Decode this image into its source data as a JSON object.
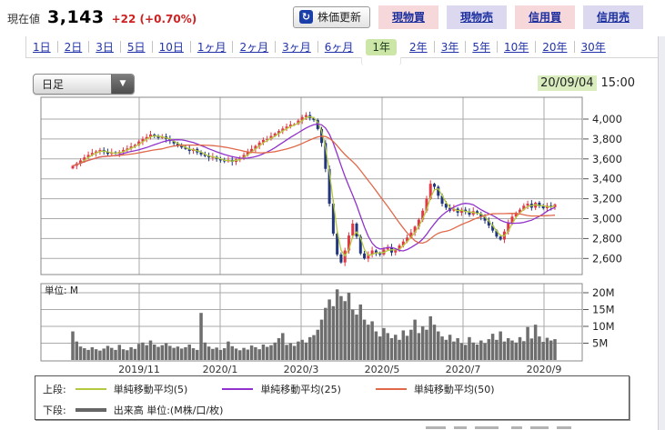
{
  "header": {
    "price_label": "現在値",
    "price": "3,143",
    "change": "+22 (+0.70%)",
    "refresh_button": "株価更新",
    "trade_buttons": [
      {
        "label": "現物買",
        "style": "pink"
      },
      {
        "label": "現物売",
        "style": "lavender"
      },
      {
        "label": "信用買",
        "style": "pink"
      },
      {
        "label": "信用売",
        "style": "lavender"
      }
    ]
  },
  "period_tabs": {
    "items": [
      "1日",
      "2日",
      "3日",
      "5日",
      "10日",
      "1ヶ月",
      "2ヶ月",
      "3ヶ月",
      "6ヶ月",
      "1年",
      "2年",
      "3年",
      "5年",
      "10年",
      "20年",
      "30年"
    ],
    "selected": "1年"
  },
  "toolbar": {
    "chart_type_value": "日足",
    "timestamp_date": "20/09/04",
    "timestamp_time": "15:00"
  },
  "chart_data": {
    "type": "candlestick",
    "x_axis_labels": [
      "2019/11",
      "2020/1",
      "2020/3",
      "2020/5",
      "2020/7",
      "2020/9"
    ],
    "price_axis_ticks": [
      4000,
      3800,
      3600,
      3400,
      3200,
      3000,
      2800,
      2600
    ],
    "volume_axis_ticks": [
      {
        "label": "20M",
        "value": 20
      },
      {
        "label": "15M",
        "value": 15
      },
      {
        "label": "10M",
        "value": 10
      },
      {
        "label": "5M",
        "value": 5
      }
    ],
    "volume_unit_label": "単位: M",
    "last_price": 3143,
    "closes": [
      3530,
      3555,
      3585,
      3615,
      3640,
      3660,
      3675,
      3690,
      3670,
      3650,
      3665,
      3655,
      3670,
      3690,
      3705,
      3725,
      3740,
      3775,
      3800,
      3820,
      3845,
      3830,
      3810,
      3825,
      3800,
      3780,
      3755,
      3735,
      3715,
      3700,
      3680,
      3700,
      3665,
      3645,
      3630,
      3615,
      3620,
      3600,
      3585,
      3575,
      3590,
      3570,
      3595,
      3610,
      3640,
      3670,
      3700,
      3730,
      3765,
      3790,
      3800,
      3830,
      3855,
      3880,
      3905,
      3925,
      3945,
      3950,
      3985,
      4020,
      4040,
      4010,
      3990,
      3900,
      3760,
      3500,
      3150,
      2850,
      2640,
      2560,
      2680,
      2830,
      2950,
      2820,
      2650,
      2600,
      2640,
      2680,
      2650,
      2640,
      2690,
      2710,
      2660,
      2690,
      2730,
      2770,
      2810,
      2860,
      2920,
      2990,
      3080,
      3200,
      3350,
      3320,
      3230,
      3150,
      3110,
      3080,
      3100,
      3060,
      3090,
      3070,
      3040,
      3075,
      3050,
      3020,
      2980,
      2930,
      2880,
      2820,
      2790,
      2870,
      2960,
      3020,
      3060,
      3090,
      3130,
      3150,
      3110,
      3160,
      3125,
      3105,
      3130,
      3115,
      3143
    ],
    "volumes_m": [
      8.5,
      5.5,
      4.0,
      3.5,
      3.0,
      3.8,
      3.2,
      2.8,
      3.4,
      4.2,
      3.6,
      3.0,
      4.5,
      3.2,
      2.9,
      3.8,
      3.3,
      4.8,
      5.2,
      4.4,
      5.8,
      4.6,
      3.9,
      4.4,
      5.0,
      4.2,
      3.6,
      4.0,
      3.4,
      3.8,
      4.6,
      3.5,
      3.0,
      14.0,
      5.2,
      4.0,
      3.3,
      3.7,
      3.0,
      3.5,
      5.5,
      4.1,
      3.4,
      2.9,
      3.6,
      3.1,
      4.3,
      3.8,
      3.2,
      4.6,
      3.9,
      4.4,
      5.2,
      6.5,
      8.0,
      4.5,
      5.0,
      4.2,
      5.5,
      6.0,
      5.2,
      6.8,
      7.4,
      9.0,
      12.0,
      15.5,
      18.0,
      16.0,
      21.0,
      19.0,
      17.5,
      20.0,
      15.0,
      13.5,
      16.5,
      12.0,
      10.5,
      11.5,
      8.5,
      7.0,
      9.5,
      8.0,
      6.5,
      7.5,
      6.0,
      8.8,
      7.2,
      9.0,
      12.0,
      8.0,
      10.0,
      9.0,
      13.0,
      10.5,
      8.5,
      7.0,
      6.0,
      7.5,
      5.5,
      6.5,
      5.0,
      4.5,
      6.8,
      5.2,
      4.6,
      5.8,
      5.0,
      6.2,
      7.8,
      6.0,
      8.5,
      5.5,
      6.5,
      5.8,
      5.2,
      6.8,
      5.6,
      9.8,
      6.4,
      10.5,
      7.0,
      5.4,
      6.6,
      5.8,
      6.2
    ],
    "moving_averages": [
      {
        "name": "単純移動平均(5)",
        "window": 3,
        "color": "#b4c93e"
      },
      {
        "name": "単純移動平均(25)",
        "window": 12,
        "color": "#9132cc"
      },
      {
        "name": "単純移動平均(50)",
        "window": 24,
        "color": "#e0694a"
      }
    ],
    "colors": {
      "up_candle": "#e03845",
      "down_candle": "#22367d",
      "volume_bar": "#6e6e6e",
      "grid": "#aaaaaa",
      "panel_border": "#888888"
    }
  },
  "legend": {
    "upper_label": "上段:",
    "lower_label": "下段:",
    "ma_items": [
      {
        "label": "単純移動平均(5)",
        "color": "#b4c93e"
      },
      {
        "label": "単純移動平均(25)",
        "color": "#9132cc"
      },
      {
        "label": "単純移動平均(50)",
        "color": "#e0694a"
      }
    ],
    "volume_item": {
      "label": "出来高 単位:(M株/口/枚)",
      "color": "#666666"
    }
  }
}
